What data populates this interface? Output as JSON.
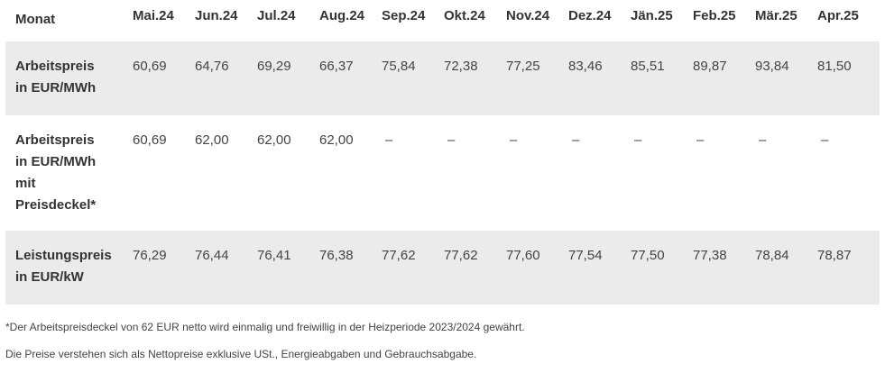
{
  "table": {
    "header_label": "Monat",
    "months": [
      "Mai.24",
      "Jun.24",
      "Jul.24",
      "Aug.24",
      "Sep.24",
      "Okt.24",
      "Nov.24",
      "Dez.24",
      "Jän.25",
      "Feb.25",
      "Mär.25",
      "Apr.25"
    ],
    "rows": [
      {
        "label_lines": [
          "Arbeitspreis",
          "in EUR/MWh"
        ],
        "values": [
          "60,69",
          "64,76",
          "69,29",
          "66,37",
          "75,84",
          "72,38",
          "77,25",
          "83,46",
          "85,51",
          "89,87",
          "93,84",
          "81,50"
        ]
      },
      {
        "label_lines": [
          "Arbeitspreis",
          "in EUR/MWh",
          "mit",
          "Preisdeckel*"
        ],
        "values": [
          "60,69",
          "62,00",
          "62,00",
          "62,00",
          "–",
          "–",
          "–",
          "–",
          "–",
          "–",
          "–",
          "–"
        ]
      },
      {
        "label_lines": [
          "Leistungspreis",
          "in EUR/kW"
        ],
        "values": [
          "76,29",
          "76,44",
          "76,41",
          "76,38",
          "77,62",
          "77,62",
          "77,60",
          "77,54",
          "77,50",
          "77,38",
          "78,84",
          "78,87"
        ]
      }
    ]
  },
  "notes": [
    "*Der Arbeitspreisdeckel von 62 EUR netto wird einmalig und freiwillig in der Heizperiode 2023/2024 gewährt.",
    "Die Preise verstehen sich als Nettopreise exklusive USt., Energieabgaben und Gebrauchsabgabe."
  ]
}
